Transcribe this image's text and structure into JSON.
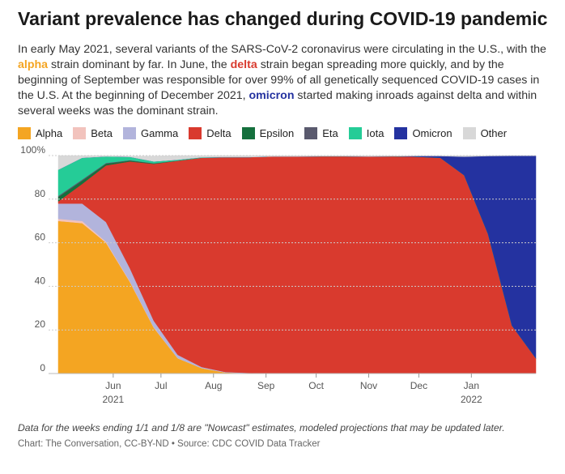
{
  "header": {
    "title": "Variant prevalence has changed during COVID-19 pandemic",
    "subtitle_parts": {
      "p1": "In early May 2021, several variants of the SARS-CoV-2 coronavirus were circulating in the U.S., with the ",
      "alpha": "alpha",
      "p2": " strain dominant by far. In June, the ",
      "delta": "delta",
      "p3": " strain began spreading more quickly, and by the beginning of September was responsible for over 99% of all genetically sequenced COVID-19 cases in the U.S. At the beginning of December 2021, ",
      "omicron": "omicron",
      "p4": " started making inroads against delta and within several weeks was the dominant strain."
    }
  },
  "footer": {
    "note": "Data for the weeks ending 1/1 and 1/8 are \"Nowcast\" estimates, modeled projections that may be updated later.",
    "credit": "Chart: The Conversation, CC-BY-ND • Source: CDC COVID Data Tracker"
  },
  "chart_data": {
    "type": "area",
    "stacked": true,
    "title": "Variant prevalence has changed during COVID-19 pandemic",
    "xlabel": "",
    "ylabel": "",
    "ylim": [
      0,
      100
    ],
    "yticks": [
      0,
      20,
      40,
      60,
      80,
      100
    ],
    "ytick_labels": [
      "0",
      "20",
      "40",
      "60",
      "80",
      "100%"
    ],
    "grid": true,
    "legend_position": "top",
    "x_weeks": [
      "2021-05-08",
      "2021-05-22",
      "2021-06-05",
      "2021-06-19",
      "2021-07-03",
      "2021-07-17",
      "2021-07-31",
      "2021-08-14",
      "2021-08-28",
      "2021-09-11",
      "2021-09-25",
      "2021-10-09",
      "2021-10-23",
      "2021-11-06",
      "2021-11-20",
      "2021-12-04",
      "2021-12-11",
      "2021-12-18",
      "2021-12-25",
      "2022-01-01",
      "2022-01-08"
    ],
    "xticks": [
      {
        "week_index": 2.3,
        "label": "Jun",
        "sublabel": "2021"
      },
      {
        "week_index": 4.3,
        "label": "Jul",
        "sublabel": ""
      },
      {
        "week_index": 6.5,
        "label": "Aug",
        "sublabel": ""
      },
      {
        "week_index": 8.7,
        "label": "Sep",
        "sublabel": ""
      },
      {
        "week_index": 10.8,
        "label": "Oct",
        "sublabel": ""
      },
      {
        "week_index": 13.0,
        "label": "Nov",
        "sublabel": ""
      },
      {
        "week_index": 15.1,
        "label": "Dec",
        "sublabel": ""
      },
      {
        "week_index": 17.3,
        "label": "Jan",
        "sublabel": "2022"
      }
    ],
    "series": [
      {
        "name": "Alpha",
        "color": "#f4a522",
        "values": [
          70,
          69,
          60,
          42,
          21,
          7,
          2.5,
          0.5,
          0.2,
          0.1,
          0.1,
          0.1,
          0.1,
          0,
          0,
          0,
          0,
          0,
          0,
          0,
          0
        ]
      },
      {
        "name": "Beta",
        "color": "#f2c3bd",
        "values": [
          1,
          1,
          0.5,
          0.3,
          0.2,
          0.1,
          0,
          0,
          0,
          0,
          0,
          0,
          0,
          0,
          0,
          0,
          0,
          0,
          0,
          0,
          0
        ]
      },
      {
        "name": "Gamma",
        "color": "#b2b4dc",
        "values": [
          7,
          8,
          9,
          6,
          3,
          1.5,
          0.5,
          0.2,
          0.1,
          0,
          0,
          0,
          0,
          0,
          0,
          0,
          0,
          0,
          0,
          0,
          0
        ]
      },
      {
        "name": "Delta",
        "color": "#d93a2e",
        "values": [
          1,
          9,
          26,
          49,
          72,
          89,
          96,
          98.5,
          99,
          99.5,
          99.5,
          99.6,
          99.6,
          99.6,
          99.7,
          99.5,
          99,
          91,
          64,
          22,
          7
        ]
      },
      {
        "name": "Epsilon",
        "color": "#15703d",
        "values": [
          2,
          1.5,
          0.8,
          0.4,
          0.2,
          0.1,
          0,
          0,
          0,
          0,
          0,
          0,
          0,
          0,
          0,
          0,
          0,
          0,
          0,
          0,
          0
        ]
      },
      {
        "name": "Eta",
        "color": "#5a5a6e",
        "values": [
          0.5,
          0.5,
          0.3,
          0.2,
          0.1,
          0,
          0,
          0,
          0,
          0,
          0,
          0,
          0,
          0,
          0,
          0,
          0,
          0,
          0,
          0,
          0
        ]
      },
      {
        "name": "Iota",
        "color": "#25cc97",
        "values": [
          12,
          10,
          3,
          1.5,
          0.8,
          0.4,
          0.2,
          0.1,
          0,
          0,
          0,
          0,
          0,
          0,
          0,
          0,
          0,
          0,
          0,
          0,
          0
        ]
      },
      {
        "name": "Omicron",
        "color": "#2432a0",
        "values": [
          0,
          0,
          0,
          0,
          0,
          0,
          0,
          0,
          0,
          0,
          0,
          0,
          0,
          0,
          0,
          0.3,
          0.8,
          8.5,
          35.8,
          77.9,
          92.9
        ]
      },
      {
        "name": "Other",
        "color": "#d8d8d8",
        "values": [
          6.5,
          1,
          0.4,
          0.4,
          2.5,
          1.9,
          0.8,
          0.7,
          0.7,
          0.4,
          0.4,
          0.3,
          0.3,
          0.4,
          0.3,
          0.2,
          0.2,
          0.5,
          0.2,
          0.1,
          0.1
        ]
      }
    ]
  }
}
